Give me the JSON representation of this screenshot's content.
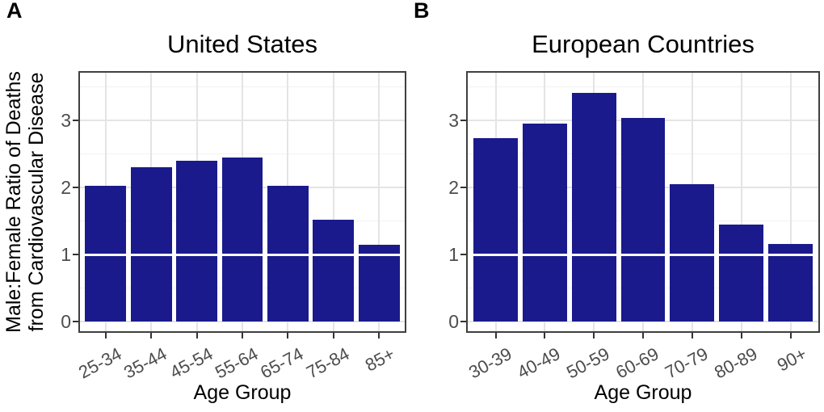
{
  "figure": {
    "panel_a_label": "A",
    "panel_b_label": "B"
  },
  "colors": {
    "bar_fill": "#1A1A8C",
    "grid_major": "#E4E4E4",
    "grid_minor": "#F2F2F2",
    "panel_border": "#3F3F3F",
    "tick_mark": "#333333",
    "tick_label": "#4D4D4D",
    "reference_line": "#FFFFFF",
    "title_text": "#000000"
  },
  "chart_data": [
    {
      "type": "bar",
      "panel": "A",
      "title": "United States",
      "xlabel": "Age Group",
      "ylabel_lines": [
        "Male:Female Ratio of Deaths",
        "from Cardiovascular Disease"
      ],
      "categories": [
        "25-34",
        "35-44",
        "45-54",
        "55-64",
        "65-74",
        "75-84",
        "85+"
      ],
      "values": [
        2.02,
        2.3,
        2.4,
        2.44,
        2.02,
        1.52,
        1.15
      ],
      "y_ticks": [
        0,
        1,
        2,
        3
      ],
      "y_minor_ticks": [
        0.5,
        1.5,
        2.5,
        3.5
      ],
      "ylim": [
        -0.17,
        3.73
      ],
      "reference_line_y": 1,
      "grid": true,
      "legend": false
    },
    {
      "type": "bar",
      "panel": "B",
      "title": "European Countries",
      "xlabel": "Age Group",
      "ylabel_lines": [],
      "categories": [
        "30-39",
        "40-49",
        "50-59",
        "60-69",
        "70-79",
        "80-89",
        "90+"
      ],
      "values": [
        2.74,
        2.95,
        3.41,
        3.04,
        2.05,
        1.45,
        1.16
      ],
      "y_ticks": [
        0,
        1,
        2,
        3
      ],
      "y_minor_ticks": [
        0.5,
        1.5,
        2.5,
        3.5
      ],
      "ylim": [
        -0.17,
        3.73
      ],
      "reference_line_y": 1,
      "grid": true,
      "legend": false
    }
  ]
}
